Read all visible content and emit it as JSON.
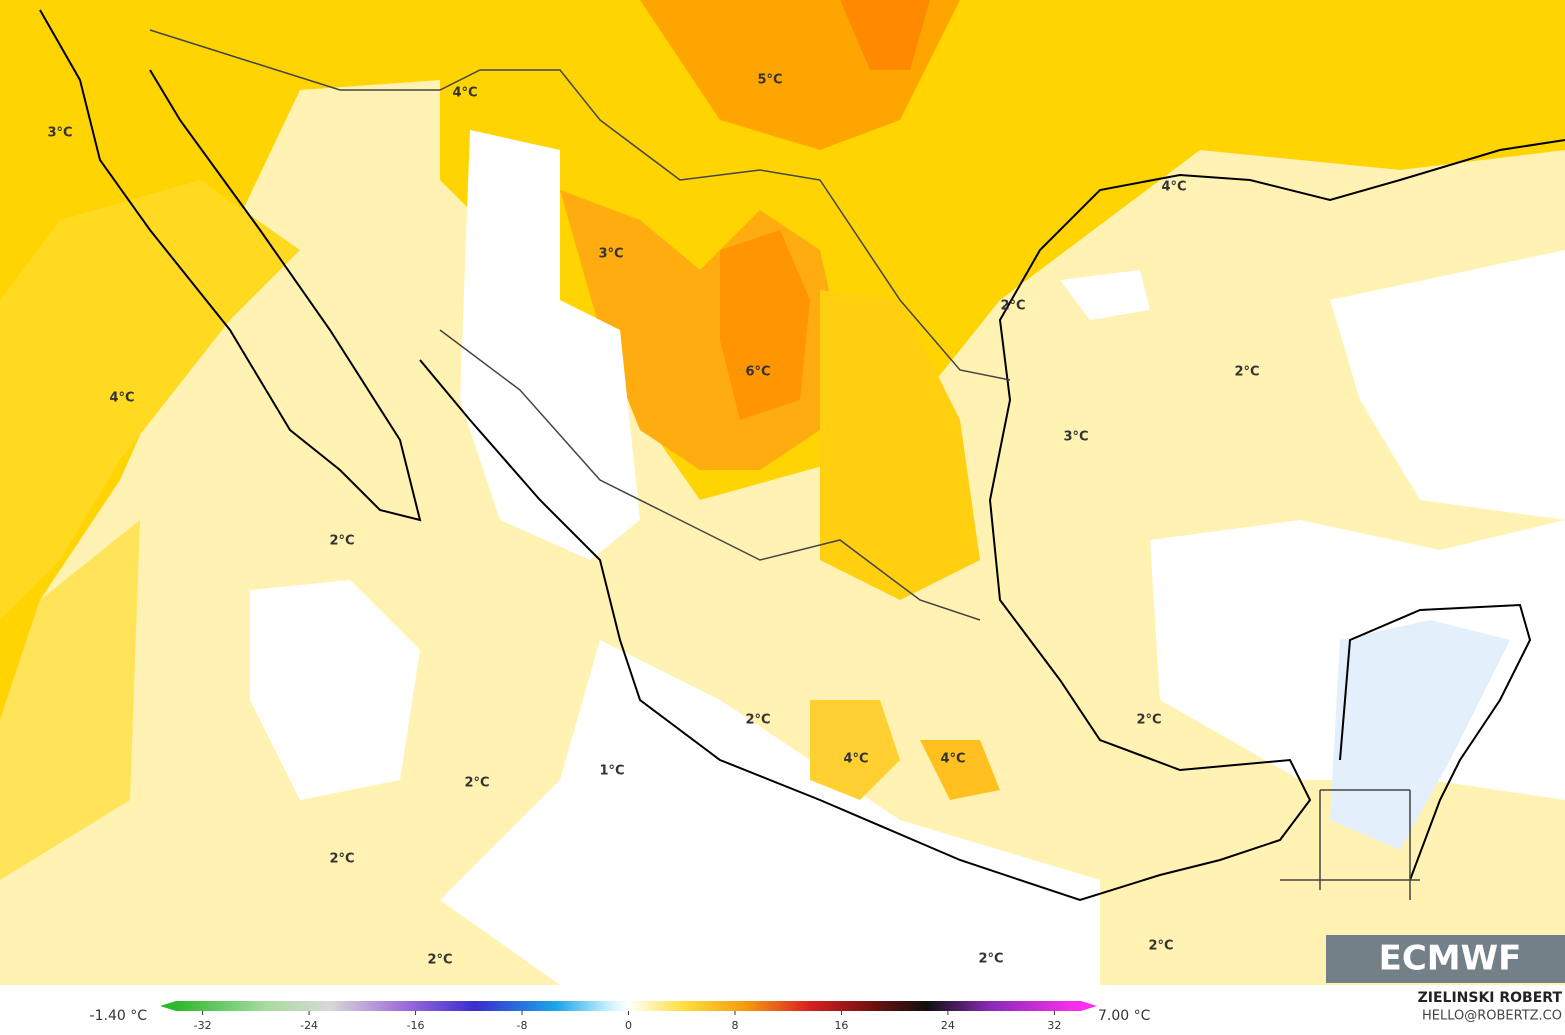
{
  "map": {
    "labels": [
      "4°C",
      "3°C",
      "5°C",
      "3°C",
      "4°C",
      "2°C",
      "2°C",
      "6°C",
      "4°C",
      "3°C",
      "2°C",
      "2°C",
      "2°C",
      "4°C",
      "4°C",
      "1°C",
      "2°C",
      "2°C",
      "2°C",
      "2°C",
      "2°C"
    ],
    "logo": "ECMWF"
  },
  "colorbar": {
    "min_label": "-1.40 °C",
    "max_label": "7.00 °C",
    "lim": [
      -34,
      34
    ],
    "ticks": [
      -32,
      -24,
      -16,
      -8,
      0,
      8,
      16,
      24,
      32
    ]
  },
  "credits": {
    "author": "ZIELINSKI ROBERT",
    "contact": "HELLO@ROBERTZ.CO"
  }
}
